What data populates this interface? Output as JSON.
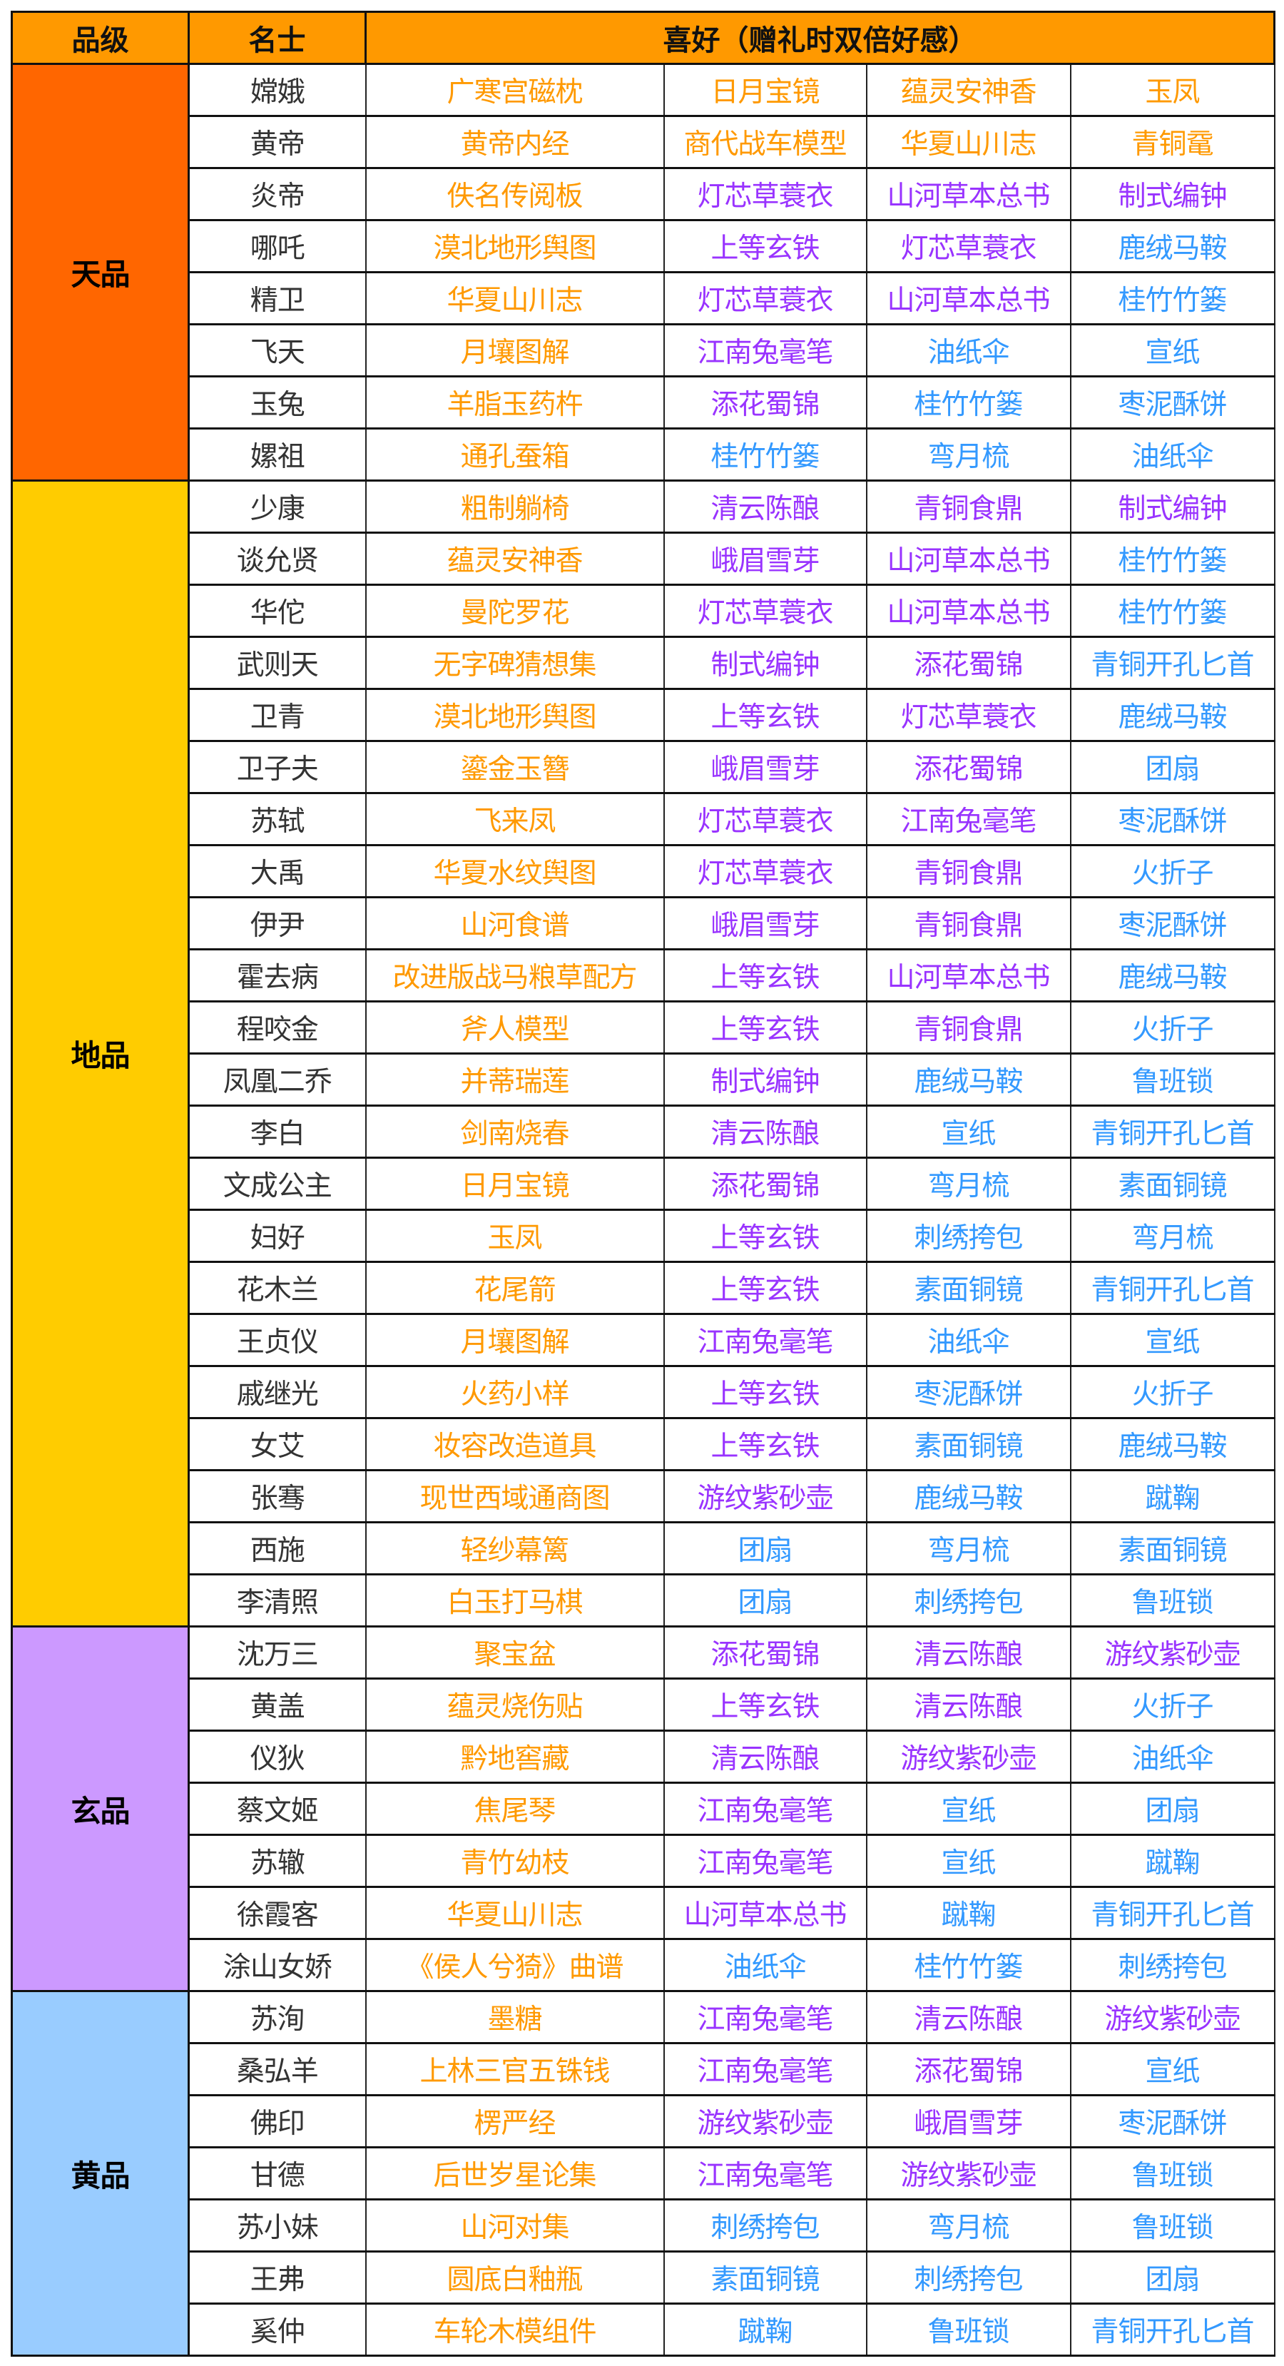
{
  "header": {
    "tier": "品级",
    "name": "名士",
    "prefs": "喜好（赠礼时双倍好感）"
  },
  "colors": {
    "header": "#ff9900",
    "orange": "#ff9900",
    "purple": "#9933ff",
    "blue": "#3399ff",
    "name_text": "#333333"
  },
  "tiers": [
    {
      "label": "天品",
      "color": "#ff6600",
      "rows": [
        {
          "name": "嫦娥",
          "gifts": [
            [
              "广寒宫磁枕",
              "orange"
            ],
            [
              "日月宝镜",
              "orange"
            ],
            [
              "蕴灵安神香",
              "orange"
            ],
            [
              "玉凤",
              "orange"
            ]
          ]
        },
        {
          "name": "黄帝",
          "gifts": [
            [
              "黄帝内经",
              "orange"
            ],
            [
              "商代战车模型",
              "orange"
            ],
            [
              "华夏山川志",
              "orange"
            ],
            [
              "青铜鼋",
              "orange"
            ]
          ]
        },
        {
          "name": "炎帝",
          "gifts": [
            [
              "佚名传阅板",
              "orange"
            ],
            [
              "灯芯草蓑衣",
              "purple"
            ],
            [
              "山河草本总书",
              "purple"
            ],
            [
              "制式编钟",
              "purple"
            ]
          ]
        },
        {
          "name": "哪吒",
          "gifts": [
            [
              "漠北地形舆图",
              "orange"
            ],
            [
              "上等玄铁",
              "purple"
            ],
            [
              "灯芯草蓑衣",
              "purple"
            ],
            [
              "鹿绒马鞍",
              "blue"
            ]
          ]
        },
        {
          "name": "精卫",
          "gifts": [
            [
              "华夏山川志",
              "orange"
            ],
            [
              "灯芯草蓑衣",
              "purple"
            ],
            [
              "山河草本总书",
              "purple"
            ],
            [
              "桂竹竹篓",
              "blue"
            ]
          ]
        },
        {
          "name": "飞天",
          "gifts": [
            [
              "月壤图解",
              "orange"
            ],
            [
              "江南兔毫笔",
              "purple"
            ],
            [
              "油纸伞",
              "blue"
            ],
            [
              "宣纸",
              "blue"
            ]
          ]
        },
        {
          "name": "玉兔",
          "gifts": [
            [
              "羊脂玉药杵",
              "orange"
            ],
            [
              "添花蜀锦",
              "purple"
            ],
            [
              "桂竹竹篓",
              "blue"
            ],
            [
              "枣泥酥饼",
              "blue"
            ]
          ]
        },
        {
          "name": "嫘祖",
          "gifts": [
            [
              "通孔蚕箱",
              "orange"
            ],
            [
              "桂竹竹篓",
              "blue"
            ],
            [
              "弯月梳",
              "blue"
            ],
            [
              "油纸伞",
              "blue"
            ]
          ]
        }
      ]
    },
    {
      "label": "地品",
      "color": "#ffcc00",
      "rows": [
        {
          "name": "少康",
          "gifts": [
            [
              "粗制躺椅",
              "orange"
            ],
            [
              "清云陈酿",
              "purple"
            ],
            [
              "青铜食鼎",
              "purple"
            ],
            [
              "制式编钟",
              "purple"
            ]
          ]
        },
        {
          "name": "谈允贤",
          "gifts": [
            [
              "蕴灵安神香",
              "orange"
            ],
            [
              "峨眉雪芽",
              "purple"
            ],
            [
              "山河草本总书",
              "purple"
            ],
            [
              "桂竹竹篓",
              "blue"
            ]
          ]
        },
        {
          "name": "华佗",
          "gifts": [
            [
              "曼陀罗花",
              "orange"
            ],
            [
              "灯芯草蓑衣",
              "purple"
            ],
            [
              "山河草本总书",
              "purple"
            ],
            [
              "桂竹竹篓",
              "blue"
            ]
          ]
        },
        {
          "name": "武则天",
          "gifts": [
            [
              "无字碑猜想集",
              "orange"
            ],
            [
              "制式编钟",
              "purple"
            ],
            [
              "添花蜀锦",
              "purple"
            ],
            [
              "青铜开孔匕首",
              "blue"
            ]
          ]
        },
        {
          "name": "卫青",
          "gifts": [
            [
              "漠北地形舆图",
              "orange"
            ],
            [
              "上等玄铁",
              "purple"
            ],
            [
              "灯芯草蓑衣",
              "purple"
            ],
            [
              "鹿绒马鞍",
              "blue"
            ]
          ]
        },
        {
          "name": "卫子夫",
          "gifts": [
            [
              "鎏金玉簪",
              "orange"
            ],
            [
              "峨眉雪芽",
              "purple"
            ],
            [
              "添花蜀锦",
              "purple"
            ],
            [
              "团扇",
              "blue"
            ]
          ]
        },
        {
          "name": "苏轼",
          "gifts": [
            [
              "飞来凤",
              "orange"
            ],
            [
              "灯芯草蓑衣",
              "purple"
            ],
            [
              "江南兔毫笔",
              "purple"
            ],
            [
              "枣泥酥饼",
              "blue"
            ]
          ]
        },
        {
          "name": "大禹",
          "gifts": [
            [
              "华夏水纹舆图",
              "orange"
            ],
            [
              "灯芯草蓑衣",
              "purple"
            ],
            [
              "青铜食鼎",
              "purple"
            ],
            [
              "火折子",
              "blue"
            ]
          ]
        },
        {
          "name": "伊尹",
          "gifts": [
            [
              "山河食谱",
              "orange"
            ],
            [
              "峨眉雪芽",
              "purple"
            ],
            [
              "青铜食鼎",
              "purple"
            ],
            [
              "枣泥酥饼",
              "blue"
            ]
          ]
        },
        {
          "name": "霍去病",
          "gifts": [
            [
              "改进版战马粮草配方",
              "orange"
            ],
            [
              "上等玄铁",
              "purple"
            ],
            [
              "山河草本总书",
              "purple"
            ],
            [
              "鹿绒马鞍",
              "blue"
            ]
          ]
        },
        {
          "name": "程咬金",
          "gifts": [
            [
              "斧人模型",
              "orange"
            ],
            [
              "上等玄铁",
              "purple"
            ],
            [
              "青铜食鼎",
              "purple"
            ],
            [
              "火折子",
              "blue"
            ]
          ]
        },
        {
          "name": "凤凰二乔",
          "gifts": [
            [
              "并蒂瑞莲",
              "orange"
            ],
            [
              "制式编钟",
              "purple"
            ],
            [
              "鹿绒马鞍",
              "blue"
            ],
            [
              "鲁班锁",
              "blue"
            ]
          ]
        },
        {
          "name": "李白",
          "gifts": [
            [
              "剑南烧春",
              "orange"
            ],
            [
              "清云陈酿",
              "purple"
            ],
            [
              "宣纸",
              "blue"
            ],
            [
              "青铜开孔匕首",
              "blue"
            ]
          ]
        },
        {
          "name": "文成公主",
          "gifts": [
            [
              "日月宝镜",
              "orange"
            ],
            [
              "添花蜀锦",
              "purple"
            ],
            [
              "弯月梳",
              "blue"
            ],
            [
              "素面铜镜",
              "blue"
            ]
          ]
        },
        {
          "name": "妇好",
          "gifts": [
            [
              "玉凤",
              "orange"
            ],
            [
              "上等玄铁",
              "purple"
            ],
            [
              "刺绣挎包",
              "blue"
            ],
            [
              "弯月梳",
              "blue"
            ]
          ]
        },
        {
          "name": "花木兰",
          "gifts": [
            [
              "花尾箭",
              "orange"
            ],
            [
              "上等玄铁",
              "purple"
            ],
            [
              "素面铜镜",
              "blue"
            ],
            [
              "青铜开孔匕首",
              "blue"
            ]
          ]
        },
        {
          "name": "王贞仪",
          "gifts": [
            [
              "月壤图解",
              "orange"
            ],
            [
              "江南兔毫笔",
              "purple"
            ],
            [
              "油纸伞",
              "blue"
            ],
            [
              "宣纸",
              "blue"
            ]
          ]
        },
        {
          "name": "戚继光",
          "gifts": [
            [
              "火药小样",
              "orange"
            ],
            [
              "上等玄铁",
              "purple"
            ],
            [
              "枣泥酥饼",
              "blue"
            ],
            [
              "火折子",
              "blue"
            ]
          ]
        },
        {
          "name": "女艾",
          "gifts": [
            [
              "妆容改造道具",
              "orange"
            ],
            [
              "上等玄铁",
              "purple"
            ],
            [
              "素面铜镜",
              "blue"
            ],
            [
              "鹿绒马鞍",
              "blue"
            ]
          ]
        },
        {
          "name": "张骞",
          "gifts": [
            [
              "现世西域通商图",
              "orange"
            ],
            [
              "游纹紫砂壶",
              "purple"
            ],
            [
              "鹿绒马鞍",
              "blue"
            ],
            [
              "蹴鞠",
              "blue"
            ]
          ]
        },
        {
          "name": "西施",
          "gifts": [
            [
              "轻纱幕篱",
              "orange"
            ],
            [
              "团扇",
              "blue"
            ],
            [
              "弯月梳",
              "blue"
            ],
            [
              "素面铜镜",
              "blue"
            ]
          ]
        },
        {
          "name": "李清照",
          "gifts": [
            [
              "白玉打马棋",
              "orange"
            ],
            [
              "团扇",
              "blue"
            ],
            [
              "刺绣挎包",
              "blue"
            ],
            [
              "鲁班锁",
              "blue"
            ]
          ]
        }
      ]
    },
    {
      "label": "玄品",
      "color": "#cc99ff",
      "rows": [
        {
          "name": "沈万三",
          "gifts": [
            [
              "聚宝盆",
              "orange"
            ],
            [
              "添花蜀锦",
              "purple"
            ],
            [
              "清云陈酿",
              "purple"
            ],
            [
              "游纹紫砂壶",
              "purple"
            ]
          ]
        },
        {
          "name": "黄盖",
          "gifts": [
            [
              "蕴灵烧伤贴",
              "orange"
            ],
            [
              "上等玄铁",
              "purple"
            ],
            [
              "清云陈酿",
              "purple"
            ],
            [
              "火折子",
              "blue"
            ]
          ]
        },
        {
          "name": "仪狄",
          "gifts": [
            [
              "黔地窖藏",
              "orange"
            ],
            [
              "清云陈酿",
              "purple"
            ],
            [
              "游纹紫砂壶",
              "purple"
            ],
            [
              "油纸伞",
              "blue"
            ]
          ]
        },
        {
          "name": "蔡文姬",
          "gifts": [
            [
              "焦尾琴",
              "orange"
            ],
            [
              "江南兔毫笔",
              "purple"
            ],
            [
              "宣纸",
              "blue"
            ],
            [
              "团扇",
              "blue"
            ]
          ]
        },
        {
          "name": "苏辙",
          "gifts": [
            [
              "青竹幼枝",
              "orange"
            ],
            [
              "江南兔毫笔",
              "purple"
            ],
            [
              "宣纸",
              "blue"
            ],
            [
              "蹴鞠",
              "blue"
            ]
          ]
        },
        {
          "name": "徐霞客",
          "gifts": [
            [
              "华夏山川志",
              "orange"
            ],
            [
              "山河草本总书",
              "purple"
            ],
            [
              "蹴鞠",
              "blue"
            ],
            [
              "青铜开孔匕首",
              "blue"
            ]
          ]
        },
        {
          "name": "涂山女娇",
          "gifts": [
            [
              "《侯人兮猗》曲谱",
              "orange"
            ],
            [
              "油纸伞",
              "blue"
            ],
            [
              "桂竹竹篓",
              "blue"
            ],
            [
              "刺绣挎包",
              "blue"
            ]
          ]
        }
      ]
    },
    {
      "label": "黄品",
      "color": "#99ccff",
      "rows": [
        {
          "name": "苏洵",
          "gifts": [
            [
              "墨糖",
              "orange"
            ],
            [
              "江南兔毫笔",
              "purple"
            ],
            [
              "清云陈酿",
              "purple"
            ],
            [
              "游纹紫砂壶",
              "purple"
            ]
          ]
        },
        {
          "name": "桑弘羊",
          "gifts": [
            [
              "上林三官五铢钱",
              "orange"
            ],
            [
              "江南兔毫笔",
              "purple"
            ],
            [
              "添花蜀锦",
              "purple"
            ],
            [
              "宣纸",
              "blue"
            ]
          ]
        },
        {
          "name": "佛印",
          "gifts": [
            [
              "楞严经",
              "orange"
            ],
            [
              "游纹紫砂壶",
              "purple"
            ],
            [
              "峨眉雪芽",
              "purple"
            ],
            [
              "枣泥酥饼",
              "blue"
            ]
          ]
        },
        {
          "name": "甘德",
          "gifts": [
            [
              "后世岁星论集",
              "orange"
            ],
            [
              "江南兔毫笔",
              "purple"
            ],
            [
              "游纹紫砂壶",
              "purple"
            ],
            [
              "鲁班锁",
              "blue"
            ]
          ]
        },
        {
          "name": "苏小妹",
          "gifts": [
            [
              "山河对集",
              "orange"
            ],
            [
              "刺绣挎包",
              "blue"
            ],
            [
              "弯月梳",
              "blue"
            ],
            [
              "鲁班锁",
              "blue"
            ]
          ]
        },
        {
          "name": "王弗",
          "gifts": [
            [
              "圆底白釉瓶",
              "orange"
            ],
            [
              "素面铜镜",
              "blue"
            ],
            [
              "刺绣挎包",
              "blue"
            ],
            [
              "团扇",
              "blue"
            ]
          ]
        },
        {
          "name": "奚仲",
          "gifts": [
            [
              "车轮木模组件",
              "orange"
            ],
            [
              "蹴鞠",
              "blue"
            ],
            [
              "鲁班锁",
              "blue"
            ],
            [
              "青铜开孔匕首",
              "blue"
            ]
          ]
        }
      ]
    }
  ]
}
